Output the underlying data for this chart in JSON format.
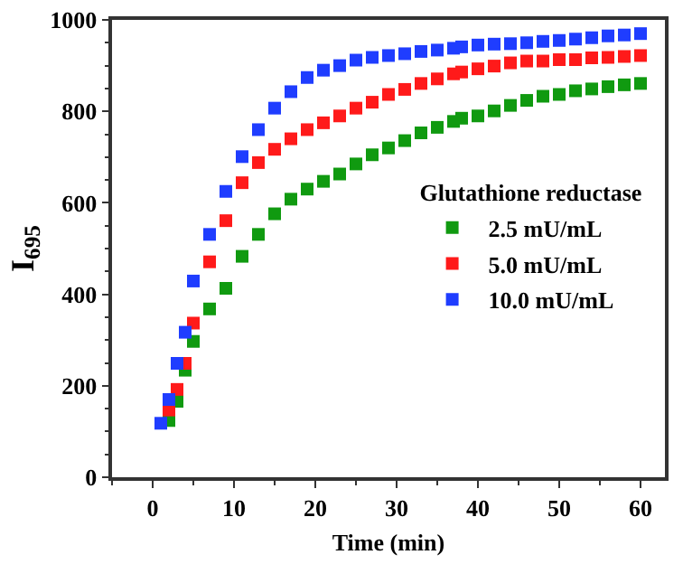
{
  "chart_data": {
    "type": "scatter",
    "xlabel": "Time (min)",
    "ylabel": "I$_{695}$",
    "legend_title": "Glutathione reductase",
    "legend": "right",
    "marker": "square",
    "grid": false,
    "x": [
      1,
      2,
      3,
      4,
      5,
      7,
      9,
      11,
      13,
      15,
      17,
      19,
      21,
      23,
      25,
      27,
      29,
      31,
      33,
      35,
      37,
      38,
      40,
      42,
      44,
      46,
      48,
      50,
      52,
      54,
      56,
      58,
      60
    ],
    "xlim": [
      -5,
      63
    ],
    "xticks": [
      0,
      10,
      20,
      30,
      40,
      50,
      60
    ],
    "ylim": [
      0,
      1000
    ],
    "yticks": [
      0,
      200,
      400,
      600,
      800,
      1000
    ],
    "series": [
      {
        "name": "2.5 mU/mL",
        "color": "#109a10",
        "values": [
          null,
          124,
          166,
          234,
          297,
          368,
          413,
          483,
          531,
          576,
          608,
          630,
          647,
          663,
          685,
          705,
          720,
          736,
          753,
          765,
          778,
          785,
          790,
          801,
          813,
          824,
          833,
          837,
          845,
          849,
          854,
          858,
          861
        ]
      },
      {
        "name": "5.0 mU/mL",
        "color": "#ff1a1a",
        "values": [
          null,
          147,
          192,
          249,
          337,
          471,
          561,
          644,
          688,
          717,
          740,
          760,
          775,
          790,
          807,
          820,
          837,
          848,
          861,
          871,
          882,
          886,
          893,
          899,
          906,
          910,
          910,
          913,
          913,
          917,
          918,
          920,
          922
        ]
      },
      {
        "name": "10.0 mU/mL",
        "color": "#1f3dff",
        "values": [
          118,
          170,
          249,
          317,
          429,
          531,
          625,
          701,
          760,
          807,
          843,
          874,
          890,
          900,
          912,
          918,
          922,
          926,
          931,
          934,
          938,
          941,
          945,
          947,
          948,
          950,
          953,
          955,
          958,
          961,
          965,
          967,
          970
        ]
      }
    ]
  }
}
